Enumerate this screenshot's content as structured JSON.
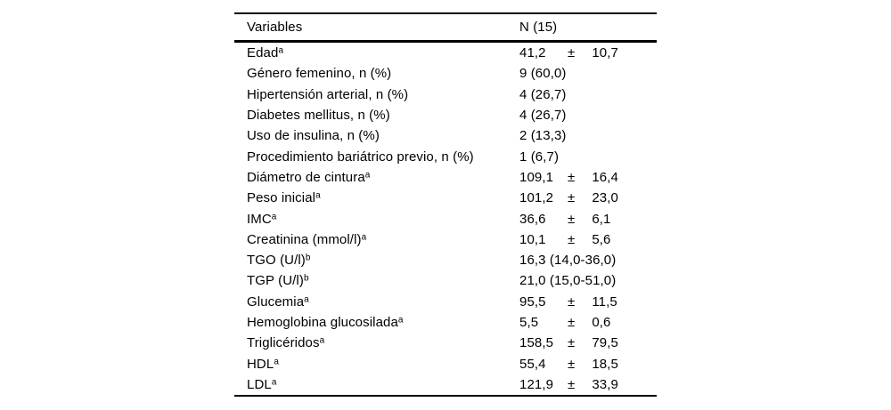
{
  "table": {
    "header": {
      "col1": "Variables",
      "col2": "N (15)"
    },
    "rows": [
      {
        "label": "Edad",
        "sup": "a",
        "mean": "41,2",
        "pm": "±",
        "sd": "10,7"
      },
      {
        "label": "Género femenino, n (%)",
        "sup": "",
        "text": "9 (60,0)"
      },
      {
        "label": "Hipertensión arterial, n (%)",
        "sup": "",
        "text": "4 (26,7)"
      },
      {
        "label": "Diabetes mellitus, n (%)",
        "sup": "",
        "text": "4 (26,7)"
      },
      {
        "label": "Uso de insulina, n (%)",
        "sup": "",
        "text": "2 (13,3)"
      },
      {
        "label": "Procedimiento bariátrico previo, n (%)",
        "sup": "",
        "text": "1 (6,7)"
      },
      {
        "label": "Diámetro de cintura",
        "sup": "a",
        "mean": "109,1",
        "pm": "±",
        "sd": "16,4"
      },
      {
        "label": "Peso inicial",
        "sup": "a",
        "mean": "101,2",
        "pm": "±",
        "sd": "23,0"
      },
      {
        "label": "IMC",
        "sup": "a",
        "mean": "36,6",
        "pm": "±",
        "sd": "6,1"
      },
      {
        "label": "Creatinina (mmol/l)",
        "sup": "a",
        "mean": "10,1",
        "pm": "±",
        "sd": "5,6"
      },
      {
        "label": "TGO (U/l)",
        "sup": "b",
        "text": "16,3 (14,0-36,0)"
      },
      {
        "label": "TGP (U/l)",
        "sup": "b",
        "text": "21,0 (15,0-51,0)"
      },
      {
        "label": "Glucemia",
        "sup": "a",
        "mean": "95,5",
        "pm": "±",
        "sd": "11,5"
      },
      {
        "label": "Hemoglobina glucosilada",
        "sup": "a",
        "mean": "5,5",
        "pm": "±",
        "sd": "0,6"
      },
      {
        "label": "Triglicéridos",
        "sup": "a",
        "mean": "158,5",
        "pm": "±",
        "sd": "79,5"
      },
      {
        "label": "HDL",
        "sup": "a",
        "mean": "55,4",
        "pm": "±",
        "sd": "18,5"
      },
      {
        "label": "LDL",
        "sup": "a",
        "mean": "121,9",
        "pm": "±",
        "sd": "33,9"
      }
    ]
  }
}
